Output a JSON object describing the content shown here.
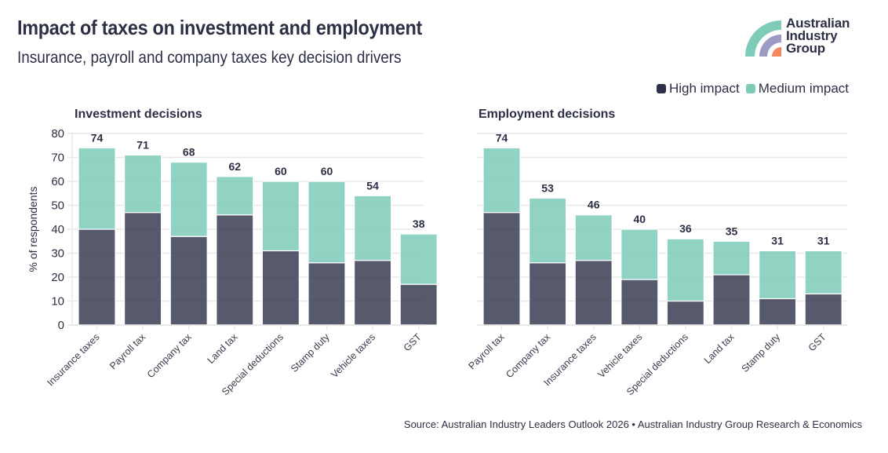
{
  "header": {
    "title": "Impact of taxes on investment and employment",
    "subtitle": "Insurance, payroll and company taxes key decision drivers"
  },
  "logo": {
    "icon": "australian-industry-group-logo",
    "line1": "Australian",
    "line2": "Industry",
    "line3": "Group",
    "colors": [
      "#7ecbb7",
      "#9b9bc4",
      "#f2885e"
    ]
  },
  "legend": {
    "items": [
      {
        "label": "High impact",
        "color": "#2d3048"
      },
      {
        "label": "Medium impact",
        "color": "#7ecbb7"
      }
    ]
  },
  "footer": {
    "source": "Source: Australian Industry Leaders Outlook 2026 • Australian Industry Group Research & Economics"
  },
  "chart_data": [
    {
      "type": "bar",
      "stacked": true,
      "title": "Investment decisions",
      "xlabel": "",
      "ylabel": "% of respondents",
      "ylim": [
        0,
        80
      ],
      "yticks": [
        0,
        10,
        20,
        30,
        40,
        50,
        60,
        70,
        80
      ],
      "grid": true,
      "legend_position": "top-right",
      "categories": [
        "Insurance taxes",
        "Payroll tax",
        "Company tax",
        "Land tax",
        "Special deductions",
        "Stamp duty",
        "Vehicle taxes",
        "GST"
      ],
      "totals": [
        74,
        71,
        68,
        62,
        60,
        60,
        54,
        38
      ],
      "series": [
        {
          "name": "High impact",
          "color": "#2d3048",
          "values": [
            40,
            47,
            37,
            46,
            31,
            26,
            27,
            17
          ]
        },
        {
          "name": "Medium impact",
          "color": "#7ecbb7",
          "values": [
            34,
            24,
            31,
            16,
            29,
            34,
            27,
            21
          ]
        }
      ]
    },
    {
      "type": "bar",
      "stacked": true,
      "title": "Employment decisions",
      "xlabel": "",
      "ylabel": "",
      "ylim": [
        0,
        80
      ],
      "yticks": [
        0,
        10,
        20,
        30,
        40,
        50,
        60,
        70,
        80
      ],
      "grid": true,
      "legend_position": "top-right",
      "categories": [
        "Payroll tax",
        "Company tax",
        "Insurance taxes",
        "Vehicle taxes",
        "Special deductions",
        "Land tax",
        "Stamp duty",
        "GST"
      ],
      "totals": [
        74,
        53,
        46,
        40,
        36,
        35,
        31,
        31
      ],
      "series": [
        {
          "name": "High impact",
          "color": "#2d3048",
          "values": [
            47,
            26,
            27,
            19,
            10,
            21,
            11,
            13
          ]
        },
        {
          "name": "Medium impact",
          "color": "#7ecbb7",
          "values": [
            27,
            27,
            19,
            21,
            26,
            14,
            20,
            18
          ]
        }
      ]
    }
  ]
}
